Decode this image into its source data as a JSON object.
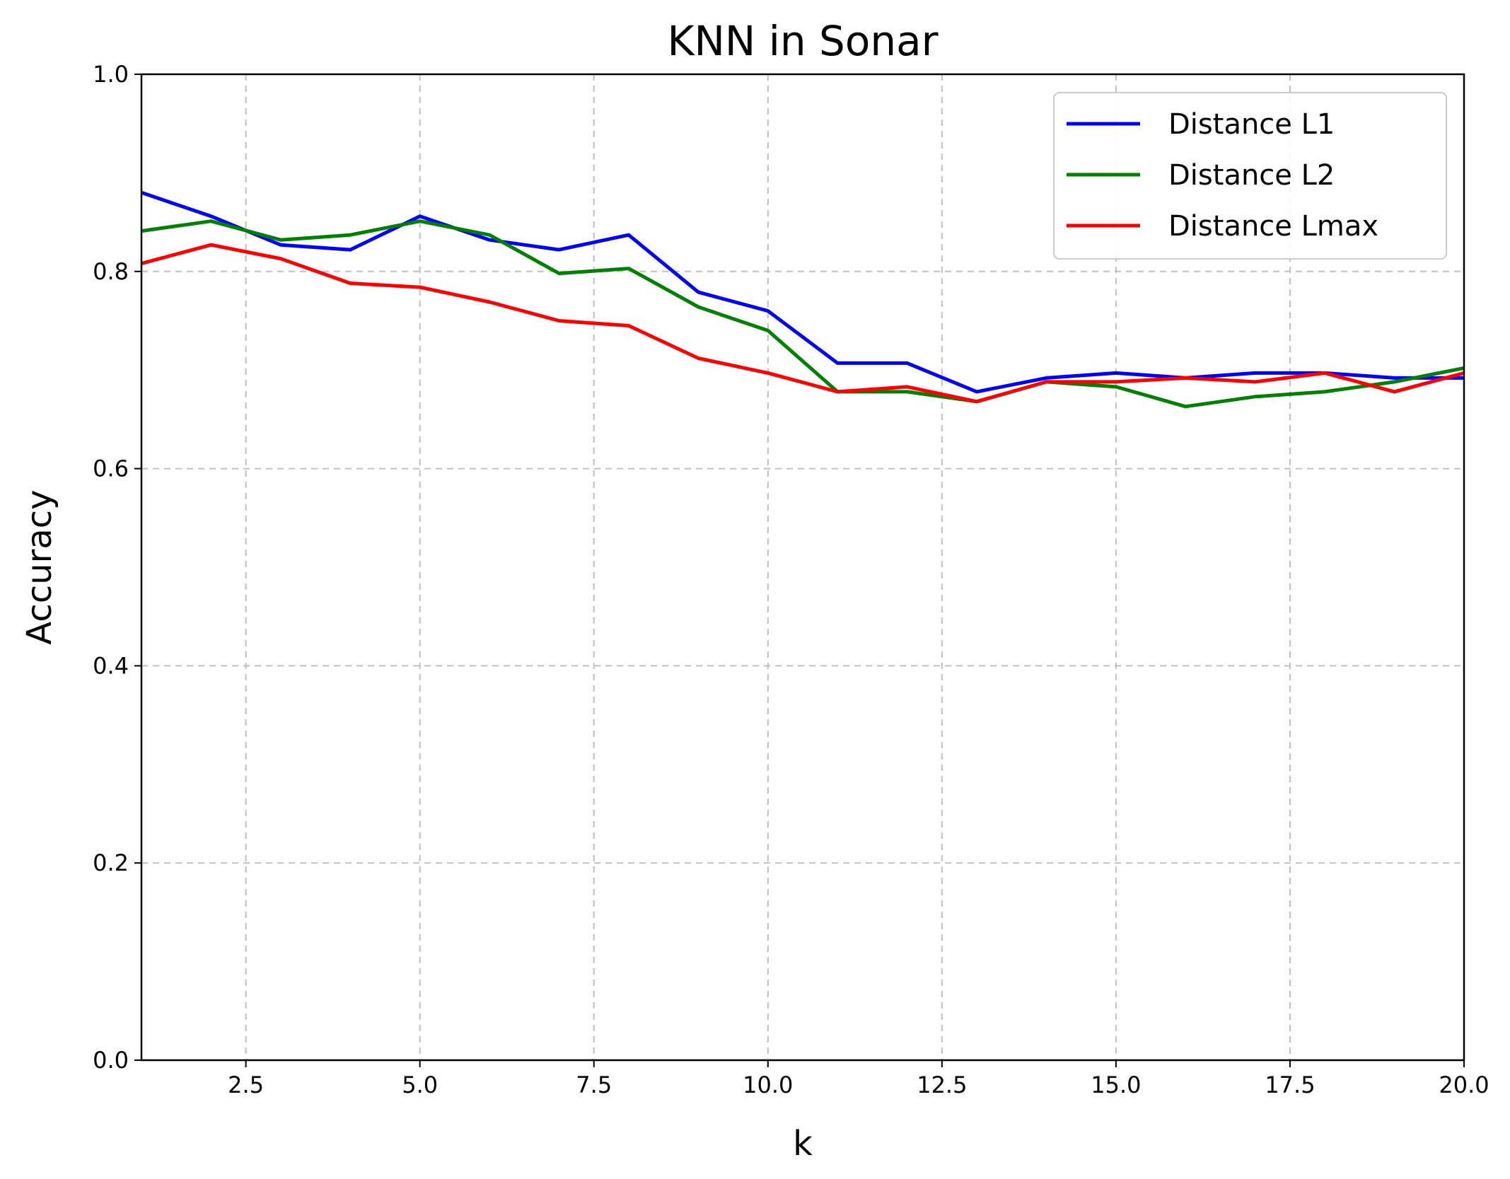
{
  "chart_data": {
    "type": "line",
    "title": "KNN in Sonar",
    "xlabel": "k",
    "ylabel": "Accuracy",
    "xlim": [
      1,
      20
    ],
    "ylim": [
      0.0,
      1.0
    ],
    "xticks": [
      2.5,
      5.0,
      7.5,
      10.0,
      12.5,
      15.0,
      17.5,
      20.0
    ],
    "xtick_labels": [
      "2.5",
      "5.0",
      "7.5",
      "10.0",
      "12.5",
      "15.0",
      "17.5",
      "20.0"
    ],
    "yticks": [
      0.0,
      0.2,
      0.4,
      0.6,
      0.8,
      1.0
    ],
    "ytick_labels": [
      "0.0",
      "0.2",
      "0.4",
      "0.6",
      "0.8",
      "1.0"
    ],
    "grid": true,
    "legend_position": "top-right",
    "x": [
      1,
      2,
      3,
      4,
      5,
      6,
      7,
      8,
      9,
      10,
      11,
      12,
      13,
      14,
      15,
      16,
      17,
      18,
      19,
      20
    ],
    "series": [
      {
        "name": "Distance L1",
        "color": "#0000ff",
        "values": [
          0.88,
          0.856,
          0.827,
          0.822,
          0.856,
          0.832,
          0.822,
          0.837,
          0.779,
          0.76,
          0.707,
          0.707,
          0.678,
          0.692,
          0.697,
          0.692,
          0.697,
          0.697,
          0.692,
          0.692
        ]
      },
      {
        "name": "Distance L2",
        "color": "#008000",
        "values": [
          0.841,
          0.851,
          0.832,
          0.837,
          0.851,
          0.837,
          0.798,
          0.803,
          0.764,
          0.74,
          0.678,
          0.678,
          0.668,
          0.688,
          0.683,
          0.663,
          0.673,
          0.678,
          0.688,
          0.702
        ]
      },
      {
        "name": "Distance Lmax",
        "color": "#ff0000",
        "values": [
          0.808,
          0.827,
          0.813,
          0.788,
          0.784,
          0.769,
          0.75,
          0.745,
          0.712,
          0.697,
          0.678,
          0.683,
          0.668,
          0.688,
          0.688,
          0.692,
          0.688,
          0.697,
          0.678,
          0.697
        ]
      }
    ]
  }
}
